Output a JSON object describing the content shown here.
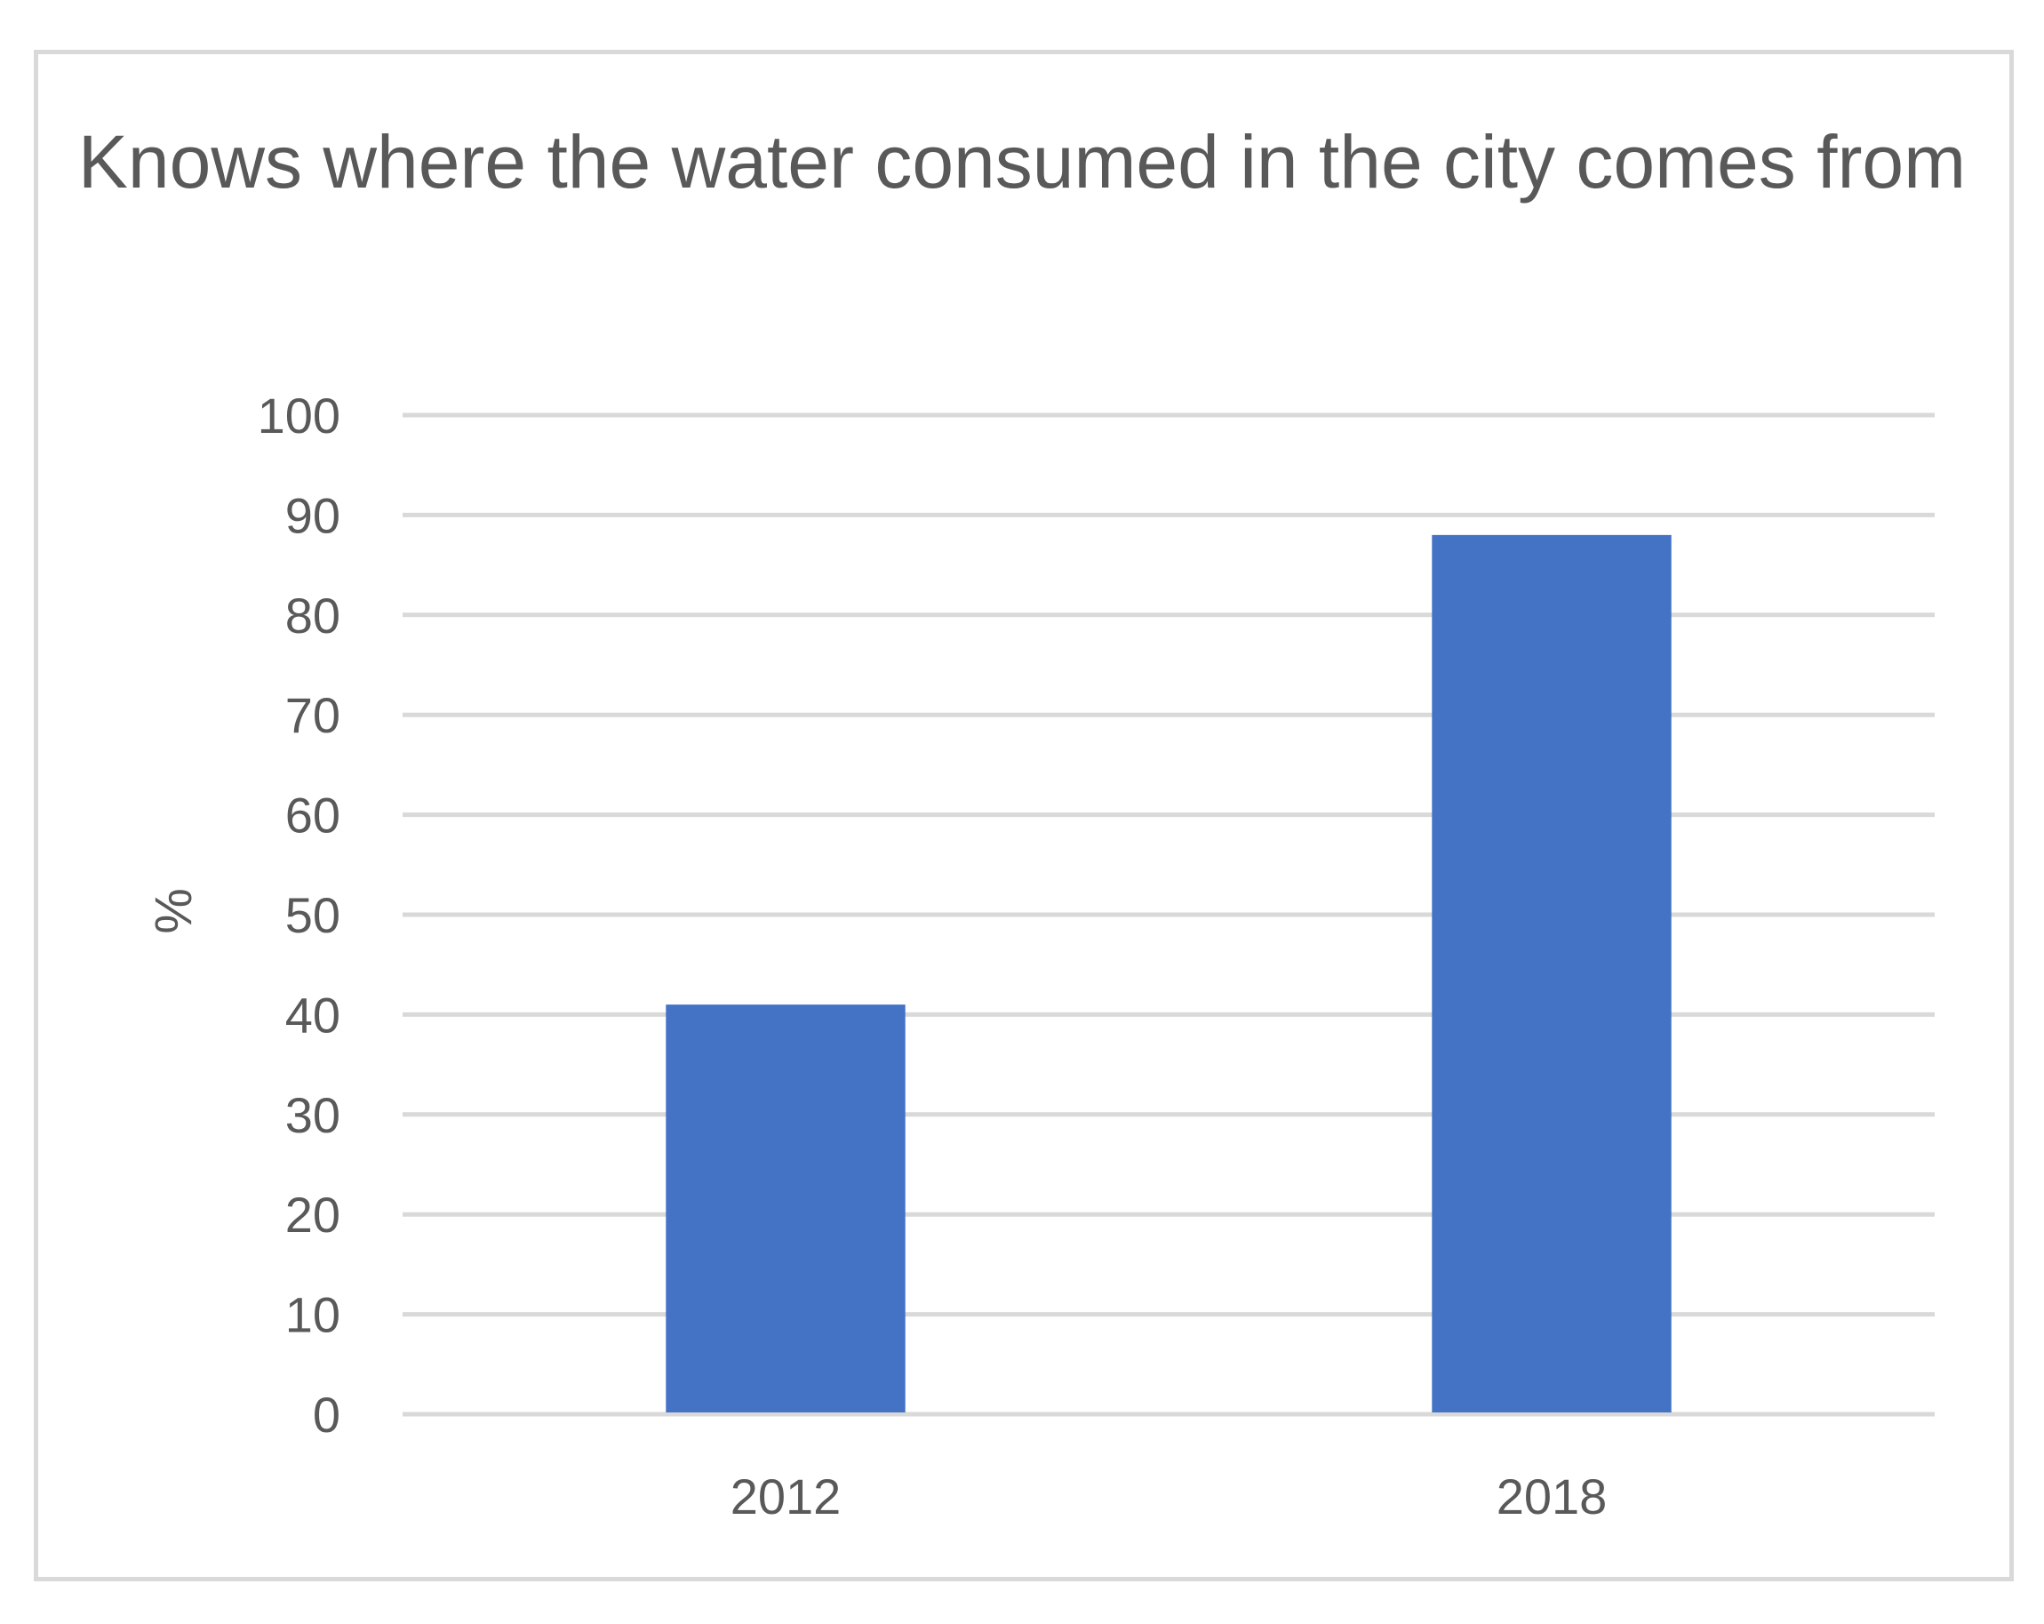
{
  "chart_data": {
    "type": "bar",
    "title": "Knows where the water consumed in the city comes from",
    "xlabel": "",
    "ylabel": "%",
    "categories": [
      "2012",
      "2018"
    ],
    "values": [
      41,
      88
    ],
    "ylim": [
      0,
      100
    ],
    "yticks": [
      0,
      10,
      20,
      30,
      40,
      50,
      60,
      70,
      80,
      90,
      100
    ],
    "grid": true,
    "legend": "none",
    "colors": {
      "bar": "#4472c4",
      "grid": "#d9d9d9",
      "text": "#595959"
    }
  }
}
